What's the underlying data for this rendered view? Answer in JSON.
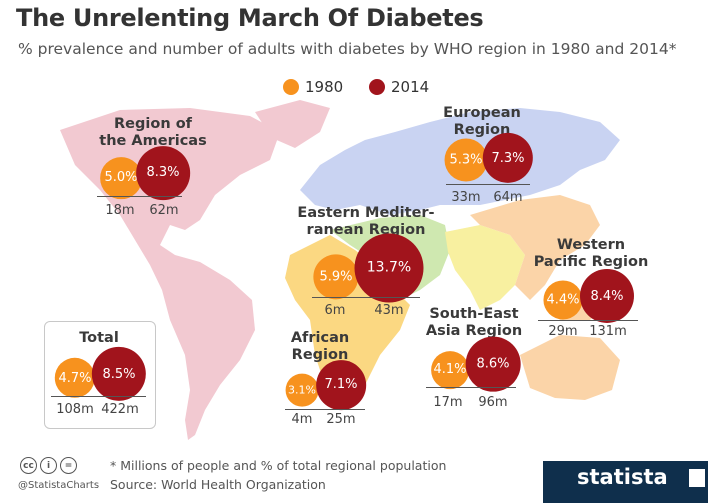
{
  "header": {
    "title": "The Unrelenting March Of Diabetes",
    "subtitle": "% prevalence and number of adults with diabetes by WHO region in 1980 and 2014*"
  },
  "legend": {
    "items": [
      {
        "label": "1980",
        "color": "#f7921e"
      },
      {
        "label": "2014",
        "color": "#a1141c"
      }
    ]
  },
  "colors": {
    "bubble_1980": "#f7921e",
    "bubble_2014": "#a1141c",
    "americas_land": "#f2c9d1",
    "europe_land": "#c9d3f2",
    "east_med_land": "#cfe8b0",
    "africa_land": "#fbd882",
    "se_asia_land": "#f8f0a0",
    "west_pacific_land": "#fbd4a8",
    "brand_bar": "#0f2f4c"
  },
  "chart_data": {
    "type": "bubble",
    "title": "The Unrelenting March Of Diabetes",
    "subtitle": "% prevalence and number of adults with diabetes by WHO region in 1980 and 2014*",
    "series": [
      {
        "name": "1980"
      },
      {
        "name": "2014"
      }
    ],
    "regions": [
      {
        "key": "americas",
        "name": "Region of the Americas",
        "prevalence_1980": 5.0,
        "prevalence_2014": 8.3,
        "label_1980": "5.0%",
        "label_2014": "8.3%",
        "adults_1980": "18m",
        "adults_2014": "62m"
      },
      {
        "key": "europe",
        "name": "European Region",
        "prevalence_1980": 5.3,
        "prevalence_2014": 7.3,
        "label_1980": "5.3%",
        "label_2014": "7.3%",
        "adults_1980": "33m",
        "adults_2014": "64m"
      },
      {
        "key": "east_med",
        "name": "Eastern Mediter-ranean Region",
        "prevalence_1980": 5.9,
        "prevalence_2014": 13.7,
        "label_1980": "5.9%",
        "label_2014": "13.7%",
        "adults_1980": "6m",
        "adults_2014": "43m"
      },
      {
        "key": "africa",
        "name": "African Region",
        "prevalence_1980": 3.1,
        "prevalence_2014": 7.1,
        "label_1980": "3.1%",
        "label_2014": "7.1%",
        "adults_1980": "4m",
        "adults_2014": "25m"
      },
      {
        "key": "se_asia",
        "name": "South-East Asia Region",
        "prevalence_1980": 4.1,
        "prevalence_2014": 8.6,
        "label_1980": "4.1%",
        "label_2014": "8.6%",
        "adults_1980": "17m",
        "adults_2014": "96m"
      },
      {
        "key": "west_pacific",
        "name": "Western Pacific Region",
        "prevalence_1980": 4.4,
        "prevalence_2014": 8.4,
        "label_1980": "4.4%",
        "label_2014": "8.4%",
        "adults_1980": "29m",
        "adults_2014": "131m"
      },
      {
        "key": "total",
        "name": "Total",
        "prevalence_1980": 4.7,
        "prevalence_2014": 8.5,
        "label_1980": "4.7%",
        "label_2014": "8.5%",
        "adults_1980": "108m",
        "adults_2014": "422m"
      }
    ],
    "region_labels": {
      "americas": [
        "Region of",
        "the Americas"
      ],
      "europe": [
        "European",
        "Region"
      ],
      "east_med": [
        "Eastern Mediter-",
        "ranean Region"
      ],
      "africa": [
        "African",
        "Region"
      ],
      "se_asia": [
        "South-East",
        "Asia Region"
      ],
      "west_pacific": [
        "Western",
        "Pacific Region"
      ],
      "total": [
        "Total"
      ]
    }
  },
  "footer": {
    "note": "* Millions of people and % of total regional population",
    "source": "Source: World Health Organization",
    "handle": "@StatistaCharts",
    "brand": "statista",
    "license_icons": [
      "cc",
      "i",
      "="
    ]
  }
}
